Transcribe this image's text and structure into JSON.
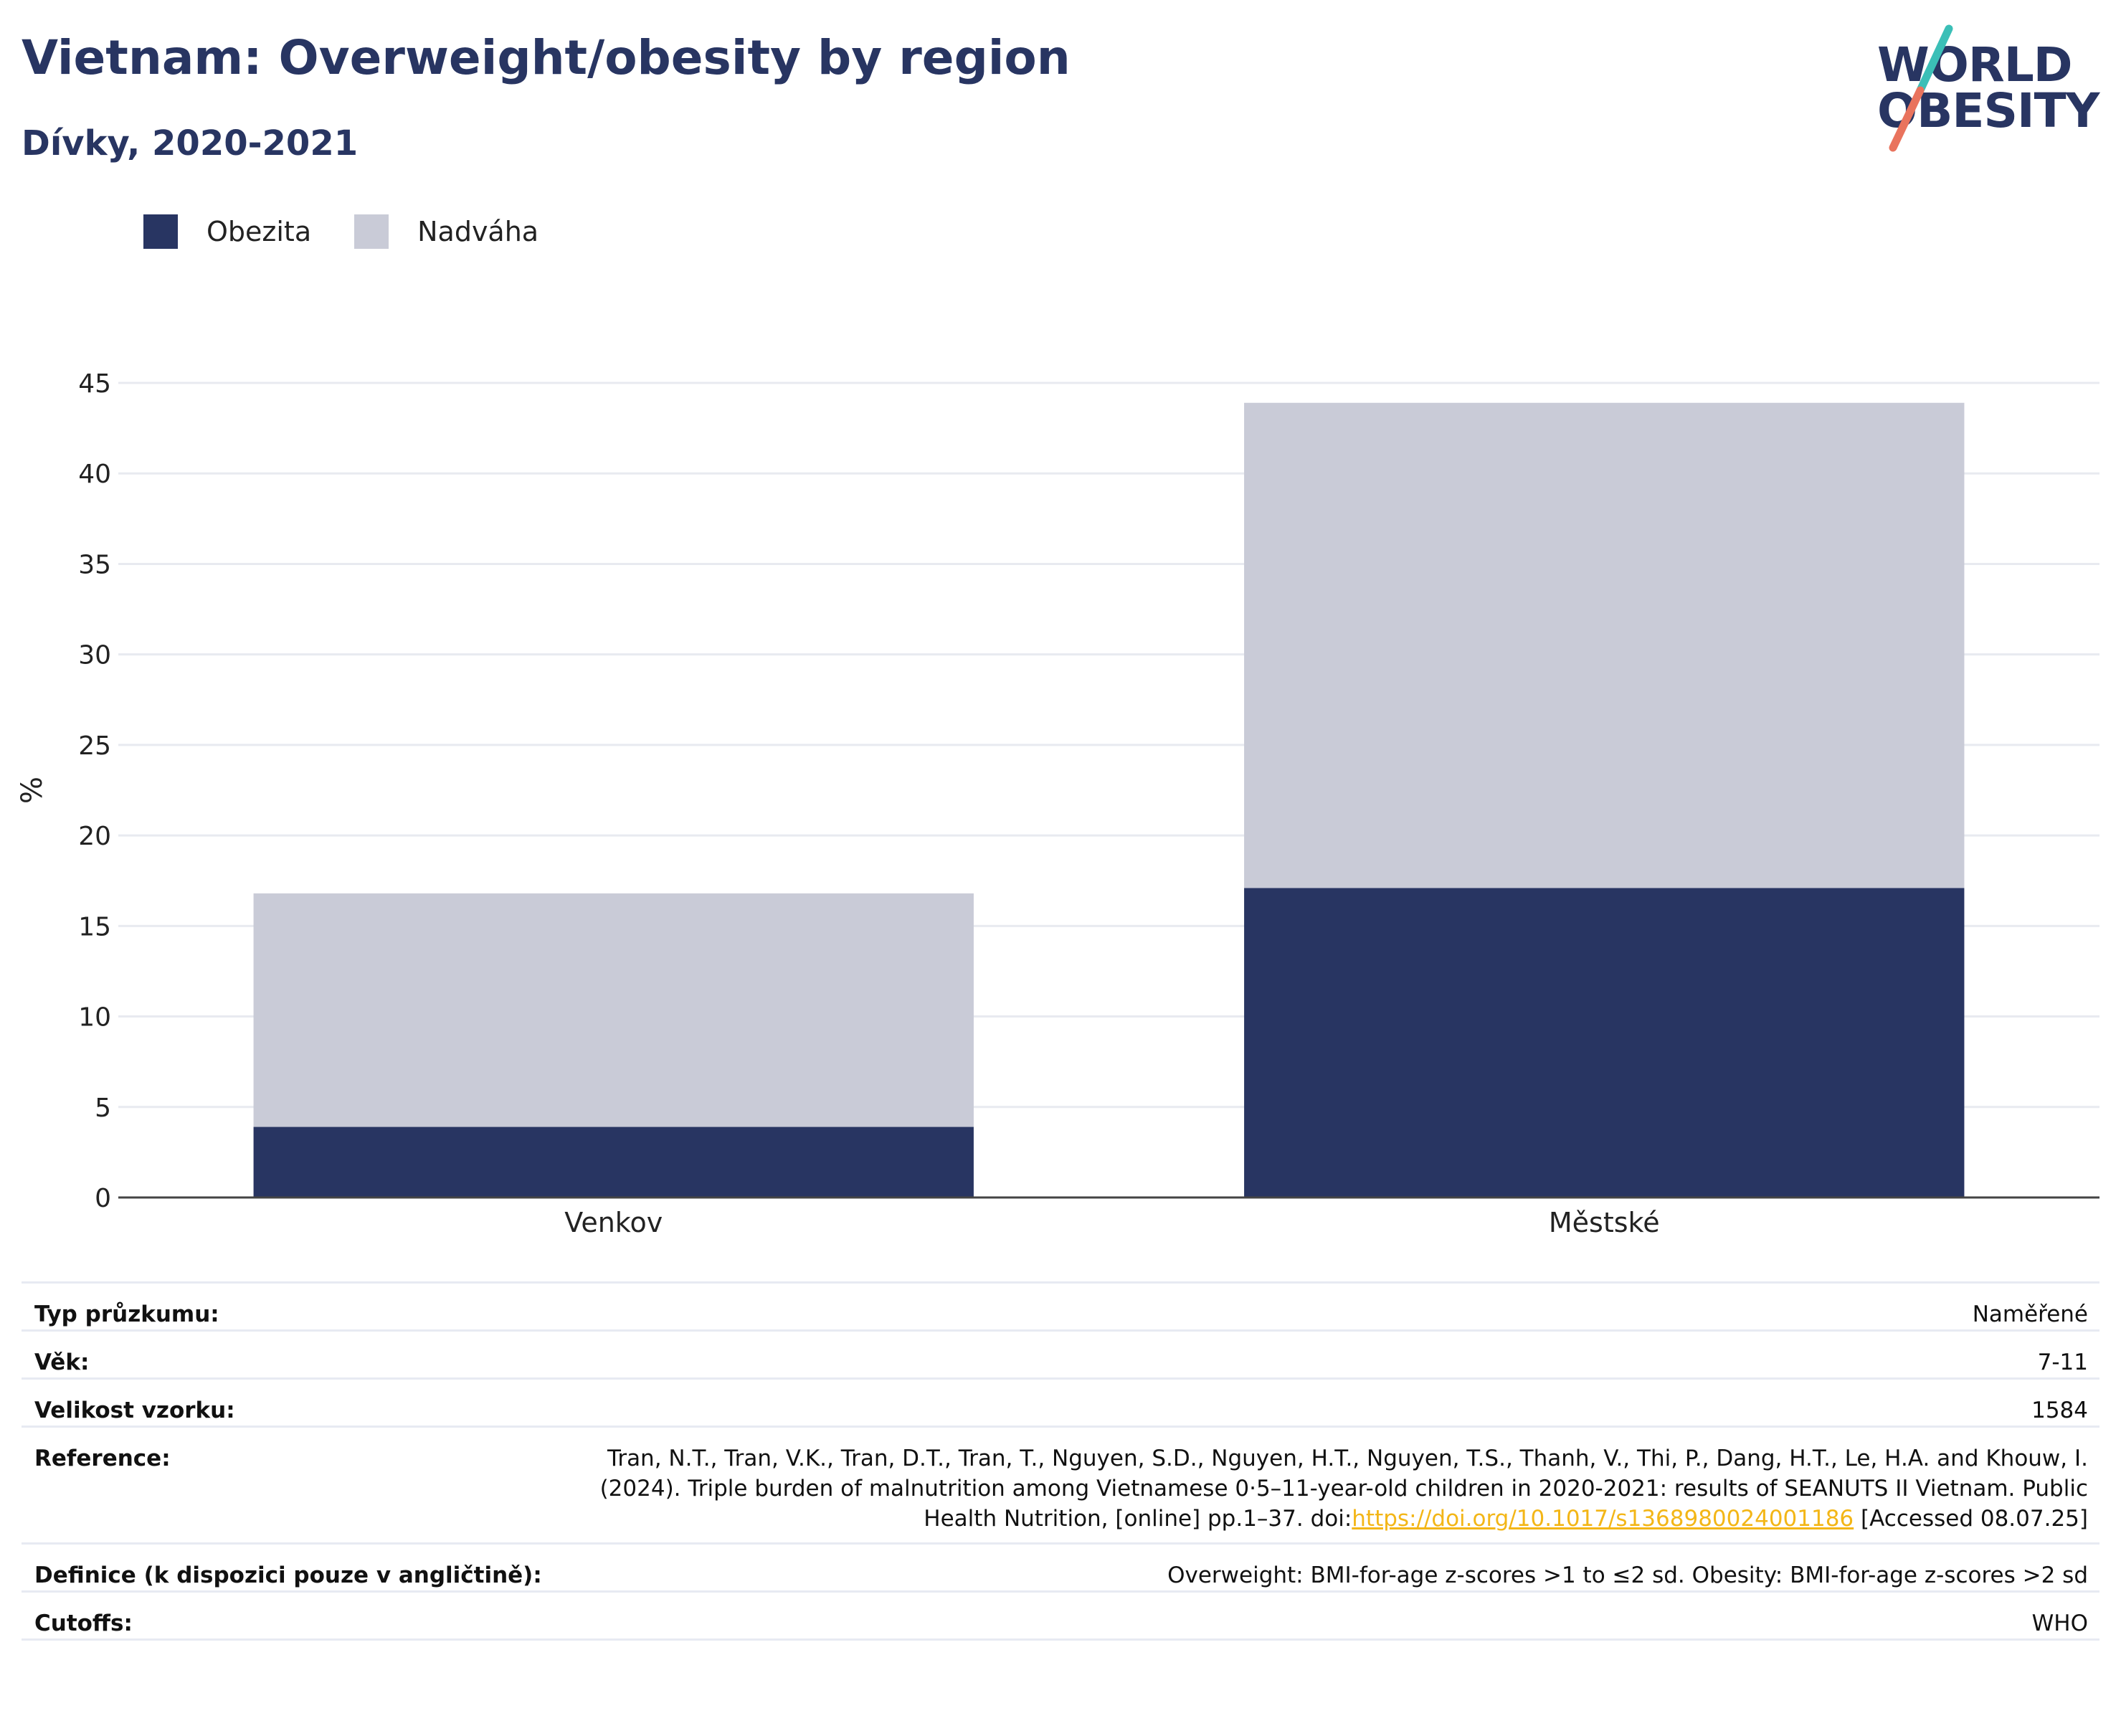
{
  "header": {
    "title": "Vietnam: Overweight/obesity by region",
    "subtitle": "Dívky, 2020-2021"
  },
  "logo": {
    "line1": "WORLD",
    "line2": "OBESITY",
    "colors": {
      "text": "#283562",
      "slash_top": "#3bbfb7",
      "slash_bottom": "#e9735d"
    }
  },
  "chart_data": {
    "type": "bar",
    "stacked": true,
    "categories": [
      "Venkov",
      "Městské"
    ],
    "series": [
      {
        "name": "Obezita",
        "color": "#283562",
        "values": [
          3.9,
          17.1
        ]
      },
      {
        "name": "Nadváha",
        "color": "#c9cbd7",
        "values": [
          12.9,
          26.8
        ]
      }
    ],
    "ylabel": "%",
    "ylim": [
      0,
      45
    ],
    "yticks": [
      0,
      5,
      10,
      15,
      20,
      25,
      30,
      35,
      40,
      45
    ],
    "grid": true,
    "legend": "top-left"
  },
  "meta": {
    "rows": [
      {
        "key": "Typ průzkumu:",
        "value": "Naměřené"
      },
      {
        "key": "Věk:",
        "value": "7-11"
      },
      {
        "key": "Velikost vzorku:",
        "value": "1584"
      },
      {
        "key": "Definice (k dispozici pouze v angličtině):",
        "value": "Overweight: BMI-for-age z-scores >1 to ≤2 sd. Obesity: BMI-for-age z-scores >2 sd"
      },
      {
        "key": "Cutoffs:",
        "value": "WHO"
      }
    ],
    "reference": {
      "key": "Reference:",
      "before": "Tran, N.T., Tran, V.K., Tran, D.T., Tran, T., Nguyen, S.D., Nguyen, H.T., Nguyen, T.S., Thanh, V., Thi, P., Dang, H.T., Le, H.A. and Khouw, I. (2024). Triple burden of malnutrition among Vietnamese 0·5–11-year-old children in 2020-2021: results of SEANUTS II Vietnam. Public Health Nutrition, [online] pp.1–37. doi:",
      "link": "https://doi.org/10.1017/s1368980024001186",
      "after": " [Accessed 08.07.25]"
    }
  }
}
